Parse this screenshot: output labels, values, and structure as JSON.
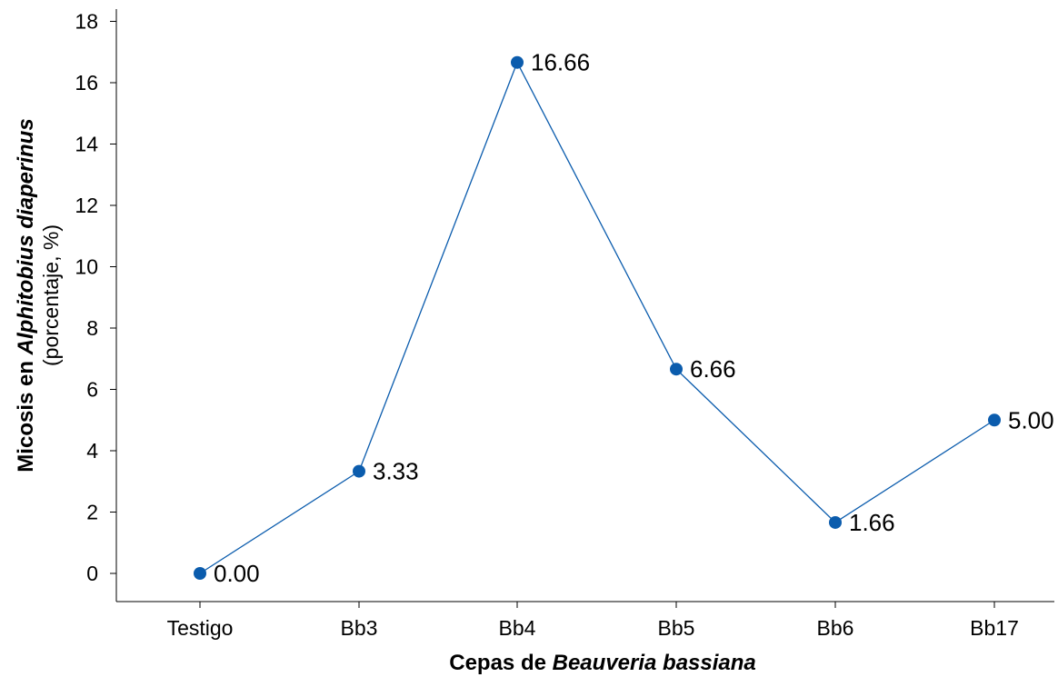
{
  "colors": {
    "series": "#0b5cad",
    "axis": "#000000",
    "text": "#000000"
  },
  "chart_data": {
    "type": "line",
    "categories": [
      "Testigo",
      "Bb3",
      "Bb4",
      "Bb5",
      "Bb6",
      "Bb17"
    ],
    "series": [
      {
        "values": [
          0.0,
          3.33,
          16.66,
          6.66,
          1.66,
          5.0
        ]
      }
    ],
    "data_labels": [
      "0.00",
      "3.33",
      "16.66",
      "6.66",
      "1.66",
      "5.00"
    ],
    "y_ticks": [
      0,
      2,
      4,
      6,
      8,
      10,
      12,
      14,
      16,
      18
    ],
    "ylim": [
      -1,
      18.3
    ],
    "grid": false,
    "xlabel": {
      "prefix": "Cepas de ",
      "italic": "Beauveria bassiana"
    },
    "ylabel": {
      "line1_prefix": "Micosis en ",
      "line1_italic": "Alphitobius diaperinus",
      "line2": "(porcentaje, %)"
    }
  }
}
